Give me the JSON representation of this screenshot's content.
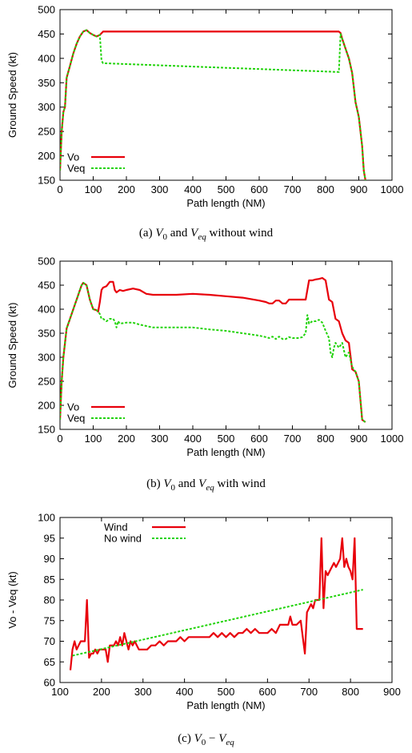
{
  "chart_data": [
    {
      "type": "line",
      "xlabel": "Path length (NM)",
      "ylabel": "Ground Speed (kt)",
      "xlim": [
        0,
        1000
      ],
      "ylim": [
        150,
        500
      ],
      "xticks": [
        "0",
        "100",
        "200",
        "300",
        "400",
        "500",
        "600",
        "700",
        "800",
        "900",
        "1000"
      ],
      "yticks": [
        "150",
        "200",
        "250",
        "300",
        "350",
        "400",
        "450",
        "500"
      ],
      "legend": "bottom-left",
      "caption": {
        "label": "(a)",
        "pre": "V",
        "pre_sub": "0",
        "mid": " and ",
        "post": "V",
        "post_sub": "eq",
        "tail": " without wind"
      },
      "series": [
        {
          "name": "Vo",
          "color": "#e8000b",
          "style": "solid",
          "x": [
            0,
            5,
            10,
            15,
            20,
            30,
            40,
            50,
            60,
            70,
            80,
            90,
            100,
            110,
            120,
            130,
            840,
            845,
            850,
            860,
            870,
            880,
            890,
            900,
            910,
            915,
            920
          ],
          "y": [
            170,
            250,
            290,
            300,
            360,
            385,
            410,
            430,
            445,
            455,
            458,
            452,
            448,
            445,
            448,
            455,
            455,
            452,
            440,
            420,
            400,
            370,
            310,
            280,
            220,
            170,
            150
          ]
        },
        {
          "name": "Veq",
          "color": "#22d30b",
          "style": "dashed",
          "x": [
            0,
            5,
            10,
            15,
            20,
            30,
            40,
            50,
            60,
            70,
            80,
            90,
            100,
            110,
            120,
            125,
            130,
            840,
            845,
            850,
            860,
            870,
            880,
            890,
            900,
            910,
            915,
            920
          ],
          "y": [
            170,
            250,
            290,
            300,
            360,
            385,
            410,
            430,
            445,
            455,
            458,
            452,
            448,
            445,
            448,
            395,
            390,
            372,
            450,
            440,
            420,
            400,
            370,
            310,
            280,
            220,
            170,
            150
          ]
        }
      ]
    },
    {
      "type": "line",
      "xlabel": "Path length (NM)",
      "ylabel": "Ground Speed (kt)",
      "xlim": [
        0,
        1000
      ],
      "ylim": [
        150,
        500
      ],
      "xticks": [
        "0",
        "100",
        "200",
        "300",
        "400",
        "500",
        "600",
        "700",
        "800",
        "900",
        "1000"
      ],
      "yticks": [
        "150",
        "200",
        "250",
        "300",
        "350",
        "400",
        "450",
        "500"
      ],
      "legend": "bottom-left",
      "caption": {
        "label": "(b)",
        "pre": "V",
        "pre_sub": "0",
        "mid": " and ",
        "post": "V",
        "post_sub": "eq",
        "tail": " with wind"
      },
      "series": [
        {
          "name": "Vo",
          "color": "#e8000b",
          "style": "solid",
          "x": [
            0,
            5,
            10,
            20,
            30,
            40,
            50,
            60,
            65,
            70,
            80,
            90,
            100,
            110,
            115,
            120,
            125,
            130,
            140,
            150,
            160,
            165,
            170,
            180,
            190,
            200,
            220,
            240,
            260,
            280,
            300,
            350,
            400,
            450,
            500,
            550,
            600,
            620,
            630,
            640,
            650,
            660,
            670,
            680,
            690,
            700,
            710,
            720,
            730,
            740,
            750,
            760,
            770,
            780,
            790,
            800,
            810,
            820,
            830,
            840,
            850,
            860,
            870,
            880,
            890,
            900,
            910,
            920
          ],
          "y": [
            170,
            250,
            300,
            360,
            380,
            400,
            420,
            440,
            450,
            455,
            450,
            420,
            400,
            398,
            395,
            415,
            440,
            445,
            448,
            457,
            457,
            440,
            435,
            440,
            438,
            440,
            443,
            440,
            432,
            430,
            430,
            430,
            432,
            430,
            427,
            424,
            418,
            415,
            412,
            412,
            418,
            418,
            412,
            412,
            420,
            420,
            420,
            420,
            420,
            420,
            460,
            460,
            462,
            463,
            465,
            460,
            420,
            415,
            380,
            375,
            350,
            335,
            330,
            275,
            270,
            250,
            170,
            165
          ]
        },
        {
          "name": "Veq",
          "color": "#22d30b",
          "style": "dashed",
          "x": [
            0,
            5,
            10,
            20,
            30,
            40,
            50,
            60,
            65,
            70,
            80,
            90,
            100,
            110,
            115,
            120,
            125,
            130,
            140,
            150,
            160,
            165,
            170,
            175,
            180,
            200,
            220,
            240,
            260,
            280,
            300,
            350,
            400,
            450,
            500,
            550,
            600,
            620,
            630,
            640,
            650,
            660,
            670,
            680,
            690,
            700,
            710,
            720,
            730,
            740,
            745,
            750,
            760,
            770,
            780,
            790,
            800,
            810,
            815,
            820,
            825,
            830,
            840,
            850,
            860,
            870,
            880,
            890,
            900,
            910,
            920
          ],
          "y": [
            170,
            250,
            300,
            360,
            380,
            400,
            420,
            440,
            450,
            455,
            450,
            420,
            400,
            398,
            395,
            390,
            380,
            380,
            375,
            380,
            380,
            375,
            362,
            375,
            370,
            372,
            372,
            368,
            365,
            362,
            362,
            362,
            362,
            358,
            355,
            350,
            345,
            342,
            340,
            343,
            338,
            343,
            338,
            338,
            342,
            340,
            340,
            340,
            342,
            350,
            388,
            370,
            375,
            375,
            378,
            372,
            355,
            340,
            310,
            300,
            320,
            330,
            320,
            330,
            300,
            310,
            280,
            270,
            250,
            170,
            165
          ]
        }
      ]
    },
    {
      "type": "line",
      "xlabel": "Path length (NM)",
      "ylabel": "Vo - Veq (kt)",
      "xlim": [
        100,
        900
      ],
      "ylim": [
        60,
        100
      ],
      "xticks": [
        "100",
        "200",
        "300",
        "400",
        "500",
        "600",
        "700",
        "800",
        "900"
      ],
      "yticks": [
        "60",
        "65",
        "70",
        "75",
        "80",
        "85",
        "90",
        "95",
        "100"
      ],
      "legend": "top-left",
      "caption": {
        "label": "(c)",
        "pre": "V",
        "pre_sub": "0",
        "mid": " − ",
        "post": "V",
        "post_sub": "eq",
        "tail": ""
      },
      "series": [
        {
          "name": "Wind",
          "color": "#e8000b",
          "style": "solid",
          "x": [
            125,
            130,
            135,
            140,
            145,
            150,
            155,
            160,
            165,
            170,
            175,
            180,
            185,
            190,
            195,
            200,
            205,
            210,
            215,
            220,
            225,
            230,
            235,
            240,
            245,
            250,
            255,
            260,
            265,
            270,
            275,
            280,
            285,
            290,
            300,
            310,
            320,
            330,
            340,
            350,
            360,
            370,
            380,
            390,
            400,
            410,
            420,
            430,
            440,
            450,
            460,
            470,
            480,
            490,
            500,
            510,
            520,
            530,
            540,
            550,
            560,
            570,
            580,
            590,
            600,
            610,
            620,
            630,
            640,
            650,
            655,
            660,
            665,
            670,
            680,
            690,
            695,
            700,
            705,
            710,
            715,
            720,
            725,
            730,
            735,
            740,
            745,
            750,
            755,
            760,
            765,
            770,
            775,
            780,
            785,
            790,
            795,
            800,
            805,
            810,
            815,
            820,
            825,
            830
          ],
          "y": [
            63,
            68,
            70,
            68,
            69,
            70,
            70,
            70,
            80,
            66,
            67,
            67,
            68,
            67,
            68,
            68,
            68,
            68,
            65,
            69,
            69,
            69,
            70,
            69,
            71,
            69,
            72,
            70,
            68,
            70,
            69,
            70,
            69,
            68,
            68,
            68,
            69,
            69,
            70,
            69,
            70,
            70,
            70,
            71,
            70,
            71,
            71,
            71,
            71,
            71,
            71,
            72,
            71,
            72,
            71,
            72,
            71,
            72,
            72,
            73,
            72,
            73,
            72,
            72,
            72,
            73,
            72,
            74,
            74,
            74,
            76,
            74,
            74,
            74,
            75,
            67,
            77,
            78,
            79,
            78,
            80,
            80,
            80,
            95,
            78,
            87,
            86,
            87,
            88,
            89,
            88,
            89,
            90,
            95,
            88,
            90,
            88,
            87,
            85,
            95,
            73,
            73,
            73,
            73
          ]
        },
        {
          "name": "No wind",
          "color": "#22d30b",
          "style": "dashed",
          "x": [
            130,
            830
          ],
          "y": [
            66.5,
            82.5
          ]
        }
      ]
    }
  ]
}
